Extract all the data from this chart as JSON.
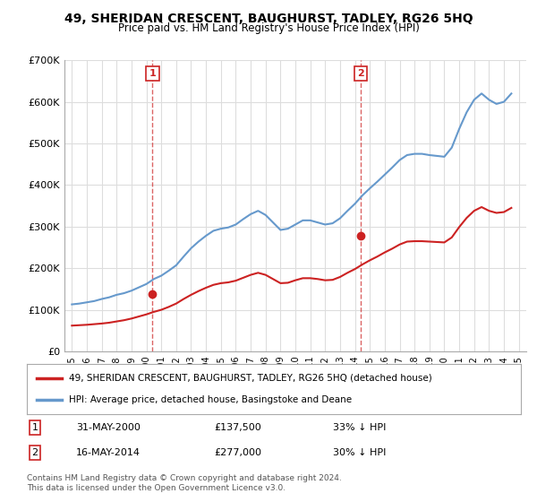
{
  "title": "49, SHERIDAN CRESCENT, BAUGHURST, TADLEY, RG26 5HQ",
  "subtitle": "Price paid vs. HM Land Registry's House Price Index (HPI)",
  "xlabel": "",
  "ylabel": "",
  "ylim": [
    0,
    700000
  ],
  "yticks": [
    0,
    100000,
    200000,
    300000,
    400000,
    500000,
    600000,
    700000
  ],
  "ytick_labels": [
    "£0",
    "£100K",
    "£200K",
    "£300K",
    "£400K",
    "£500K",
    "£600K",
    "£700K"
  ],
  "hpi_color": "#6699cc",
  "price_color": "#cc2222",
  "marker1_year": 2000.41,
  "marker1_price": 137500,
  "marker1_label": "1",
  "marker1_date": "31-MAY-2000",
  "marker1_amount": "£137,500",
  "marker1_pct": "33% ↓ HPI",
  "marker2_year": 2014.37,
  "marker2_price": 277000,
  "marker2_label": "2",
  "marker2_date": "16-MAY-2014",
  "marker2_amount": "£277,000",
  "marker2_pct": "30% ↓ HPI",
  "legend_label1": "49, SHERIDAN CRESCENT, BAUGHURST, TADLEY, RG26 5HQ (detached house)",
  "legend_label2": "HPI: Average price, detached house, Basingstoke and Deane",
  "footer": "Contains HM Land Registry data © Crown copyright and database right 2024.\nThis data is licensed under the Open Government Licence v3.0.",
  "background_color": "#ffffff",
  "grid_color": "#dddddd",
  "hpi_years": [
    1995,
    1995.5,
    1996,
    1996.5,
    1997,
    1997.5,
    1998,
    1998.5,
    1999,
    1999.5,
    2000,
    2000.5,
    2001,
    2001.5,
    2002,
    2002.5,
    2003,
    2003.5,
    2004,
    2004.5,
    2005,
    2005.5,
    2006,
    2006.5,
    2007,
    2007.5,
    2008,
    2008.5,
    2009,
    2009.5,
    2010,
    2010.5,
    2011,
    2011.5,
    2012,
    2012.5,
    2013,
    2013.5,
    2014,
    2014.5,
    2015,
    2015.5,
    2016,
    2016.5,
    2017,
    2017.5,
    2018,
    2018.5,
    2019,
    2019.5,
    2020,
    2020.5,
    2021,
    2021.5,
    2022,
    2022.5,
    2023,
    2023.5,
    2024,
    2024.5
  ],
  "hpi_values": [
    113000,
    115000,
    118000,
    121000,
    126000,
    130000,
    136000,
    140000,
    146000,
    154000,
    162000,
    174000,
    182000,
    194000,
    207000,
    228000,
    248000,
    264000,
    278000,
    290000,
    295000,
    298000,
    305000,
    318000,
    330000,
    338000,
    328000,
    310000,
    292000,
    295000,
    305000,
    315000,
    315000,
    310000,
    305000,
    308000,
    320000,
    338000,
    355000,
    375000,
    392000,
    408000,
    425000,
    442000,
    460000,
    472000,
    475000,
    475000,
    472000,
    470000,
    468000,
    490000,
    535000,
    575000,
    605000,
    620000,
    605000,
    595000,
    600000,
    620000
  ],
  "price_years": [
    1995,
    1995.5,
    1996,
    1996.5,
    1997,
    1997.5,
    1998,
    1998.5,
    1999,
    1999.5,
    2000,
    2000.5,
    2001,
    2001.5,
    2002,
    2002.5,
    2003,
    2003.5,
    2004,
    2004.5,
    2005,
    2005.5,
    2006,
    2006.5,
    2007,
    2007.5,
    2008,
    2008.5,
    2009,
    2009.5,
    2010,
    2010.5,
    2011,
    2011.5,
    2012,
    2012.5,
    2013,
    2013.5,
    2014,
    2014.5,
    2015,
    2015.5,
    2016,
    2016.5,
    2017,
    2017.5,
    2018,
    2018.5,
    2019,
    2019.5,
    2020,
    2020.5,
    2021,
    2021.5,
    2022,
    2022.5,
    2023,
    2023.5,
    2024,
    2024.5
  ],
  "price_values": [
    62000,
    63000,
    64000,
    65500,
    67000,
    69000,
    72000,
    75000,
    79000,
    84000,
    89000,
    95000,
    100000,
    107000,
    115000,
    126000,
    136000,
    145000,
    153000,
    160000,
    164000,
    166000,
    170000,
    177000,
    184000,
    189000,
    184000,
    174000,
    164000,
    165000,
    171000,
    176000,
    176000,
    174000,
    171000,
    172000,
    179000,
    189000,
    198000,
    209000,
    219000,
    228000,
    238000,
    247000,
    257000,
    264000,
    265000,
    265000,
    264000,
    263000,
    262000,
    274000,
    299000,
    321000,
    338000,
    347000,
    338000,
    333000,
    335000,
    345000
  ]
}
